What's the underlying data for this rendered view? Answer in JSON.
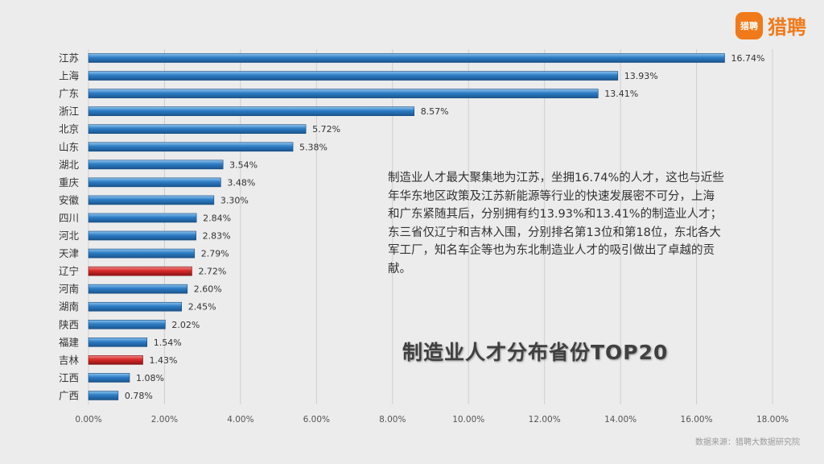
{
  "logo": {
    "badge": "猎聘",
    "text": "猎聘"
  },
  "description": [
    "制造业人才最大聚集地为江苏，坐拥16.74%的人才，这也与近些年华东地区政策及江苏新能源等行业的快速发展密不可分，上海和广东紧随其后，分别拥有约13.93%和13.41%的制造业人才；",
    "东三省仅辽宁和吉林入围，分别排名第13位和第18位，东北各大军工厂，知名车企等也为东北制造业人才的吸引做出了卓越的贡献。"
  ],
  "headline": "制造业人才分布省份TOP20",
  "source": "数据来源：猎聘大数据研究院",
  "colors": {
    "blue": "#2d7cc4",
    "red": "#d82a2a",
    "background": "#ececec"
  },
  "chart_data": {
    "type": "bar",
    "orientation": "horizontal",
    "categories": [
      "江苏",
      "上海",
      "广东",
      "浙江",
      "北京",
      "山东",
      "湖北",
      "重庆",
      "安徽",
      "四川",
      "河北",
      "天津",
      "辽宁",
      "河南",
      "湖南",
      "陕西",
      "福建",
      "吉林",
      "江西",
      "广西"
    ],
    "values": [
      16.74,
      13.93,
      13.41,
      8.57,
      5.72,
      5.38,
      3.54,
      3.48,
      3.3,
      2.84,
      2.83,
      2.79,
      2.72,
      2.6,
      2.45,
      2.02,
      1.54,
      1.43,
      1.08,
      0.78
    ],
    "value_labels": [
      "16.74%",
      "13.93%",
      "13.41%",
      "8.57%",
      "5.72%",
      "5.38%",
      "3.54%",
      "3.48%",
      "3.30%",
      "2.84%",
      "2.83%",
      "2.79%",
      "2.72%",
      "2.60%",
      "2.45%",
      "2.02%",
      "1.54%",
      "1.43%",
      "1.08%",
      "0.78%"
    ],
    "highlighted": [
      "辽宁",
      "吉林"
    ],
    "xlim": [
      0,
      18
    ],
    "xticks": [
      0,
      2,
      4,
      6,
      8,
      10,
      12,
      14,
      16,
      18
    ],
    "xtick_labels": [
      "0.00%",
      "2.00%",
      "4.00%",
      "6.00%",
      "8.00%",
      "10.00%",
      "12.00%",
      "14.00%",
      "16.00%",
      "18.00%"
    ],
    "grid": "vertical",
    "legend": "none"
  }
}
